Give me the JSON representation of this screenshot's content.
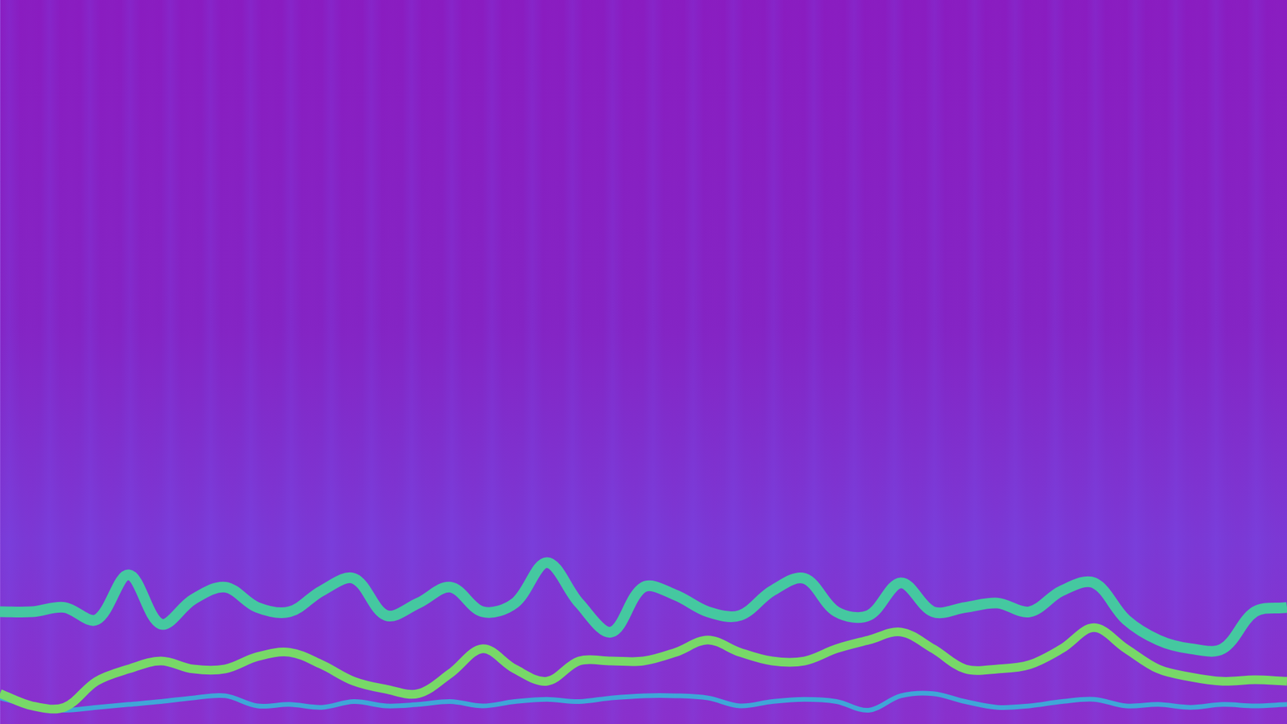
{
  "chart_data": {
    "type": "line",
    "x": [
      0,
      2.5,
      5,
      7.5,
      10,
      12.5,
      15,
      17.5,
      20,
      22.5,
      25,
      27.5,
      30,
      32.5,
      35,
      37.5,
      40,
      42.5,
      45,
      47.5,
      50,
      52.5,
      55,
      57.5,
      60,
      62.5,
      65,
      67.5,
      70,
      72.5,
      75,
      77.5,
      80,
      82.5,
      85,
      87.5,
      90,
      92.5,
      95,
      97.5,
      100
    ],
    "series": [
      {
        "color": "#45c8a0",
        "values": [
          15.5,
          15.5,
          16.1,
          14.4,
          20.6,
          13.8,
          17.2,
          18.9,
          16.1,
          15.5,
          18.4,
          20.1,
          15.0,
          16.7,
          18.9,
          15.5,
          16.7,
          22.3,
          16.7,
          12.7,
          18.9,
          17.8,
          15.5,
          15.0,
          18.4,
          20.1,
          15.5,
          15.0,
          19.5,
          15.5,
          16.1,
          16.7,
          15.5,
          18.4,
          19.5,
          14.4,
          11.6,
          10.4,
          10.4,
          15.5,
          16.1
        ]
      },
      {
        "color": "#78d868",
        "values": [
          4.2,
          2.5,
          2.3,
          5.9,
          7.6,
          8.7,
          7.6,
          7.6,
          9.3,
          9.9,
          8.2,
          5.9,
          4.8,
          4.2,
          7.0,
          10.4,
          7.6,
          5.9,
          8.7,
          8.7,
          8.7,
          9.9,
          11.6,
          9.9,
          8.7,
          8.7,
          10.4,
          11.6,
          12.7,
          10.4,
          7.6,
          7.6,
          8.2,
          10.4,
          13.3,
          10.4,
          7.6,
          6.5,
          5.9,
          6.1,
          5.9
        ]
      },
      {
        "color": "#3fa6d8",
        "values": [
          3.6,
          2.5,
          1.9,
          2.3,
          2.7,
          3.1,
          3.6,
          3.9,
          2.5,
          2.7,
          2.3,
          3.1,
          2.5,
          2.7,
          3.1,
          2.5,
          3.1,
          3.4,
          3.1,
          3.6,
          3.9,
          3.9,
          3.6,
          2.5,
          3.1,
          3.4,
          3.1,
          1.9,
          3.9,
          4.2,
          3.1,
          2.3,
          2.5,
          3.1,
          3.4,
          2.5,
          2.7,
          2.3,
          2.7,
          2.5,
          2.7
        ]
      }
    ],
    "xlim": [
      0,
      100
    ],
    "ylim": [
      0,
      100
    ],
    "grid": false,
    "tick_labels": false
  }
}
